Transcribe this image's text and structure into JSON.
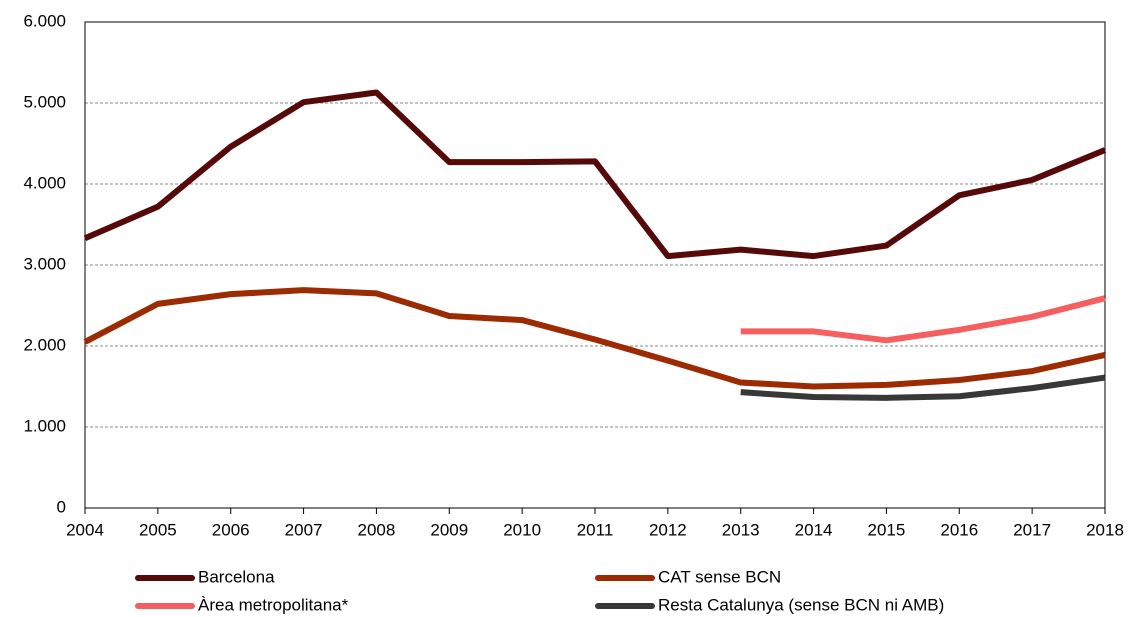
{
  "chart_data": {
    "type": "line",
    "x": [
      2004,
      2005,
      2006,
      2007,
      2008,
      2009,
      2010,
      2011,
      2012,
      2013,
      2014,
      2015,
      2016,
      2017,
      2018
    ],
    "xlim": [
      2004,
      2018
    ],
    "xticks": [
      2004,
      2005,
      2006,
      2007,
      2008,
      2009,
      2010,
      2011,
      2012,
      2013,
      2014,
      2015,
      2016,
      2017,
      2018
    ],
    "ylim": [
      0,
      6000
    ],
    "yticks": [
      0,
      {
        "value": 1000,
        "label": "1.000"
      },
      {
        "value": 2000,
        "label": "2.000"
      },
      {
        "value": 3000,
        "label": "3.000"
      },
      {
        "value": 4000,
        "label": "4.000"
      },
      {
        "value": 5000,
        "label": "5.000"
      },
      {
        "value": 6000,
        "label": "6.000"
      }
    ],
    "grid": true,
    "legend": "bottom",
    "series": [
      {
        "name": "Barcelona",
        "color": "#560909",
        "values": [
          3330,
          3720,
          4460,
          5010,
          5130,
          4270,
          4270,
          4280,
          3110,
          3190,
          3110,
          3240,
          3860,
          4050,
          4420
        ]
      },
      {
        "name": "CAT sense BCN",
        "color": "#9c2b02",
        "values": [
          2050,
          2520,
          2640,
          2690,
          2650,
          2370,
          2320,
          2080,
          1820,
          1550,
          1500,
          1520,
          1580,
          1690,
          1890
        ]
      },
      {
        "name": "Àrea metropolitana*",
        "color": "#f55f60",
        "values": [
          null,
          null,
          null,
          null,
          null,
          null,
          null,
          null,
          null,
          2180,
          2180,
          2070,
          2200,
          2360,
          2590
        ]
      },
      {
        "name": "Resta Catalunya (sense BCN ni AMB)",
        "color": "#383838",
        "values": [
          null,
          null,
          null,
          null,
          null,
          null,
          null,
          null,
          null,
          1430,
          1370,
          1360,
          1380,
          1480,
          1610
        ]
      }
    ]
  }
}
